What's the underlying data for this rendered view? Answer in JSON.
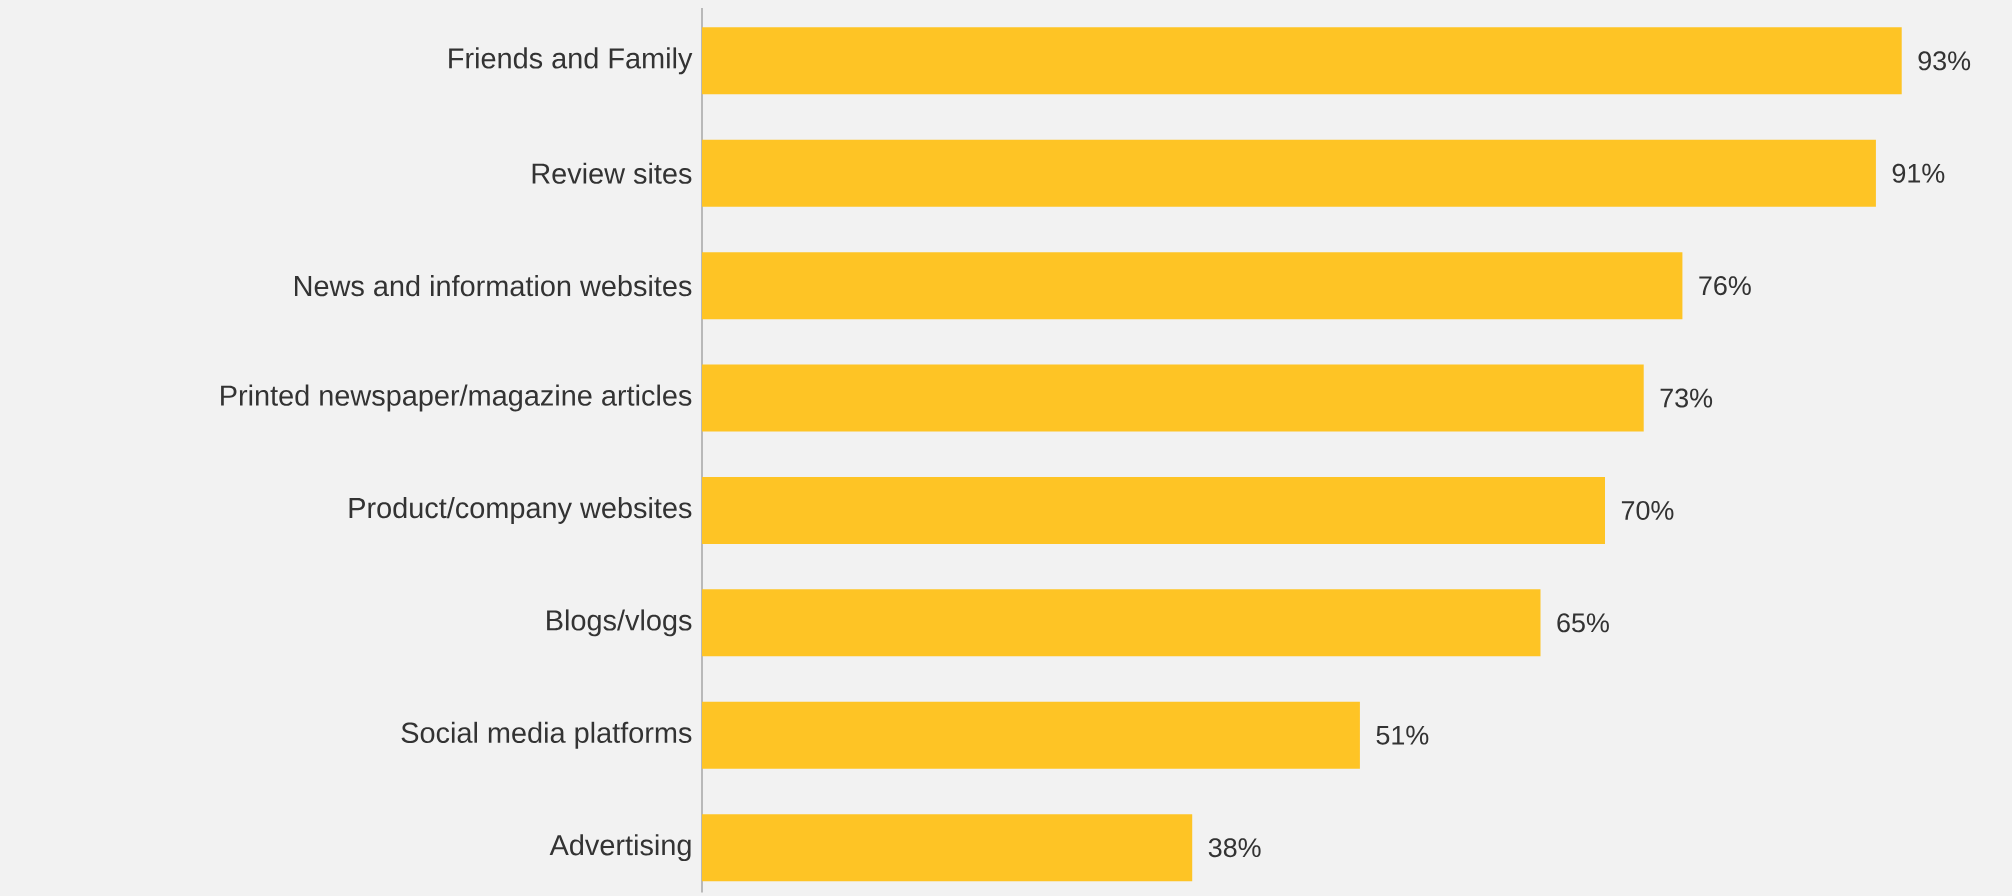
{
  "chart_data": {
    "type": "bar",
    "orientation": "horizontal",
    "categories": [
      "Friends and Family",
      "Review sites",
      "News and information websites",
      "Printed newspaper/magazine articles",
      "Product/company websites",
      "Blogs/vlogs",
      "Social media platforms",
      "Advertising"
    ],
    "values": [
      93,
      91,
      76,
      73,
      70,
      65,
      51,
      38
    ],
    "value_labels": [
      "93%",
      "91%",
      "76%",
      "73%",
      "70%",
      "65%",
      "51%",
      "38%"
    ],
    "color": "#fec425"
  }
}
